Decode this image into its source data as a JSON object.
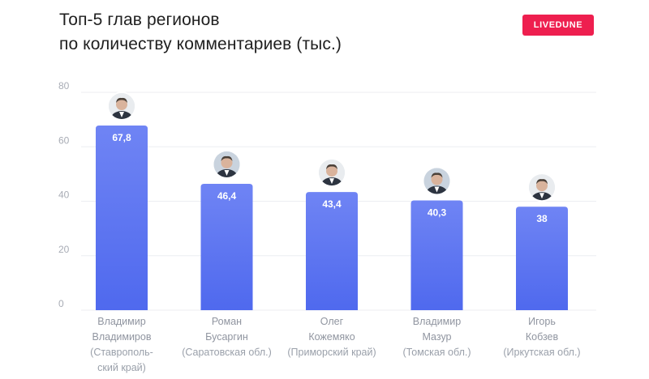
{
  "header": {
    "title_line1": "Топ-5 глав регионов",
    "title_line2": "по количеству комментариев (тыс.)",
    "brand_label": "LIVEDUNE",
    "brand_color": "#ee1f4f"
  },
  "chart_data": {
    "type": "bar",
    "title": "Топ-5 глав регионов по количеству комментариев (тыс.)",
    "categories": [
      "Владимир Владимиров (Ставропольский край)",
      "Роман Бусаргин (Саратовская обл.)",
      "Олег Кожемяко (Приморский край)",
      "Владимир Мазур (Томская обл.)",
      "Игорь Кобзев (Иркутская обл.)"
    ],
    "category_lines": [
      [
        "Владимир",
        "Владимиров",
        "(Ставрополь-",
        "ский край)"
      ],
      [
        "Роман",
        "Бусаргин",
        "(Саратовская обл.)"
      ],
      [
        "Олег",
        "Кожемяко",
        "(Приморский край)"
      ],
      [
        "Владимир",
        "Мазур",
        "(Томская обл.)"
      ],
      [
        "Игорь",
        "Кобзев",
        "(Иркутская обл.)"
      ]
    ],
    "values": [
      67.8,
      46.4,
      43.4,
      40.3,
      38
    ],
    "value_labels": [
      "67,8",
      "46,4",
      "43,4",
      "40,3",
      "38"
    ],
    "ylim": [
      0,
      80
    ],
    "yticks": [
      0,
      20,
      40,
      60,
      80
    ],
    "grid": true,
    "legend": "none",
    "xlabel": "",
    "ylabel": "",
    "colors": {
      "bar_top": "#6f84f4",
      "bar_bottom": "#4f69ee",
      "grid": "#eceef2"
    },
    "icons": [
      "avatar-photo",
      "avatar-photo",
      "avatar-photo",
      "avatar-photo",
      "avatar-photo"
    ]
  }
}
